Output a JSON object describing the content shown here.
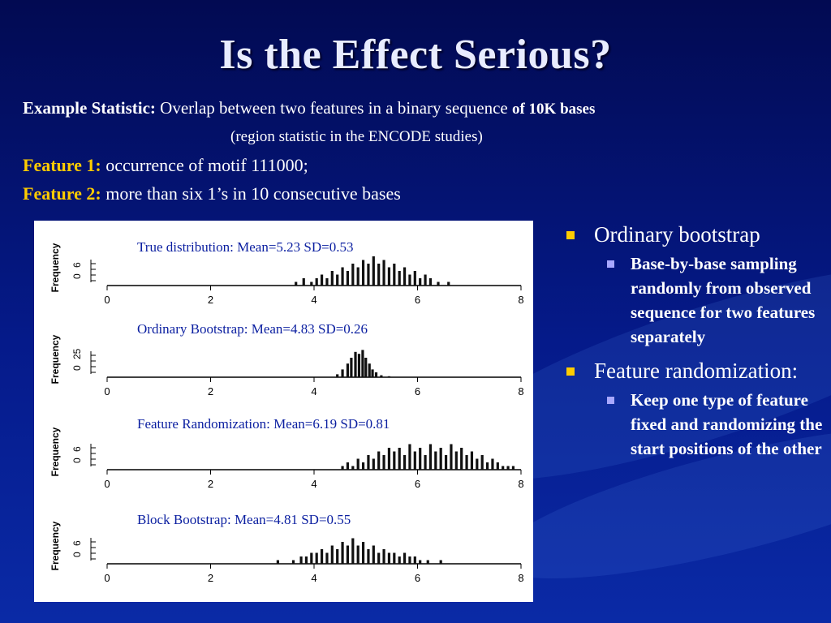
{
  "slide": {
    "title": "Is the Effect Serious?",
    "stat_label": "Example Statistic:",
    "stat_text": "Overlap between two features in a binary sequence",
    "stat_text_bold": "of 10K bases",
    "region_note": "(region statistic in the ENCODE studies)",
    "feature1_label": "Feature 1:",
    "feature1_text": "occurrence of motif 111000;",
    "feature2_label": "Feature 2:",
    "feature2_text": "more than six 1’s in 10 consecutive bases"
  },
  "bullets": {
    "b1": "Ordinary bootstrap",
    "b1_sub": "Base-by-base sampling randomly from observed sequence for two features separately",
    "b2": "Feature randomization:",
    "b2_sub": "Keep one type of feature fixed and randomizing the start positions of the other"
  },
  "colors": {
    "accent": "#ffcc00",
    "panel_title": "#0a1ea0",
    "sub_bullet": "#a8a8ff"
  },
  "chart_data": [
    {
      "type": "bar",
      "title": "True distribution: Mean=5.23  SD=0.53",
      "ylabel": "Frequency",
      "x_ticks": [
        "0",
        "2",
        "4",
        "6",
        "8"
      ],
      "y_ticks": [
        "0",
        "6"
      ],
      "xlim": [
        0,
        8
      ],
      "ylim": [
        0,
        8
      ],
      "values": [
        [
          3.65,
          1
        ],
        [
          3.8,
          2
        ],
        [
          3.95,
          1
        ],
        [
          4.05,
          2
        ],
        [
          4.15,
          3
        ],
        [
          4.25,
          2
        ],
        [
          4.35,
          4
        ],
        [
          4.45,
          3
        ],
        [
          4.55,
          5
        ],
        [
          4.65,
          4
        ],
        [
          4.75,
          6
        ],
        [
          4.85,
          5
        ],
        [
          4.95,
          7
        ],
        [
          5.05,
          6
        ],
        [
          5.15,
          8
        ],
        [
          5.25,
          6
        ],
        [
          5.35,
          7
        ],
        [
          5.45,
          5
        ],
        [
          5.55,
          6
        ],
        [
          5.65,
          4
        ],
        [
          5.75,
          5
        ],
        [
          5.85,
          3
        ],
        [
          5.95,
          4
        ],
        [
          6.05,
          2
        ],
        [
          6.15,
          3
        ],
        [
          6.25,
          2
        ],
        [
          6.4,
          1
        ],
        [
          6.6,
          1
        ]
      ]
    },
    {
      "type": "bar",
      "title": "Ordinary Bootstrap: Mean=4.83  SD=0.26",
      "ylabel": "Frequency",
      "x_ticks": [
        "0",
        "2",
        "4",
        "6",
        "8"
      ],
      "y_ticks": [
        "0",
        "25"
      ],
      "xlim": [
        0,
        8
      ],
      "ylim": [
        0,
        30
      ],
      "values": [
        [
          4.45,
          3
        ],
        [
          4.55,
          8
        ],
        [
          4.65,
          14
        ],
        [
          4.72,
          20
        ],
        [
          4.8,
          26
        ],
        [
          4.87,
          24
        ],
        [
          4.94,
          28
        ],
        [
          5.0,
          20
        ],
        [
          5.07,
          14
        ],
        [
          5.13,
          8
        ],
        [
          5.2,
          5
        ],
        [
          5.3,
          2
        ],
        [
          5.45,
          1
        ]
      ]
    },
    {
      "type": "bar",
      "title": "Feature Randomization: Mean=6.19  SD=0.81",
      "ylabel": "Frequency",
      "x_ticks": [
        "0",
        "2",
        "4",
        "6",
        "8"
      ],
      "y_ticks": [
        "0",
        "6"
      ],
      "xlim": [
        0,
        8
      ],
      "ylim": [
        0,
        8
      ],
      "values": [
        [
          4.55,
          1
        ],
        [
          4.65,
          2
        ],
        [
          4.75,
          1
        ],
        [
          4.85,
          3
        ],
        [
          4.95,
          2
        ],
        [
          5.05,
          4
        ],
        [
          5.15,
          3
        ],
        [
          5.25,
          5
        ],
        [
          5.35,
          4
        ],
        [
          5.45,
          6
        ],
        [
          5.55,
          5
        ],
        [
          5.65,
          6
        ],
        [
          5.75,
          4
        ],
        [
          5.85,
          7
        ],
        [
          5.95,
          5
        ],
        [
          6.05,
          6
        ],
        [
          6.15,
          4
        ],
        [
          6.25,
          7
        ],
        [
          6.35,
          5
        ],
        [
          6.45,
          6
        ],
        [
          6.55,
          4
        ],
        [
          6.65,
          7
        ],
        [
          6.75,
          5
        ],
        [
          6.85,
          6
        ],
        [
          6.95,
          4
        ],
        [
          7.05,
          5
        ],
        [
          7.15,
          3
        ],
        [
          7.25,
          4
        ],
        [
          7.35,
          2
        ],
        [
          7.45,
          3
        ],
        [
          7.55,
          2
        ],
        [
          7.65,
          1
        ],
        [
          7.75,
          1
        ],
        [
          7.85,
          1
        ]
      ]
    },
    {
      "type": "bar",
      "title": "Block Bootstrap: Mean=4.81  SD=0.55",
      "ylabel": "Frequency",
      "x_ticks": [
        "0",
        "2",
        "4",
        "6",
        "8"
      ],
      "y_ticks": [
        "0",
        "6"
      ],
      "xlim": [
        0,
        8
      ],
      "ylim": [
        0,
        8
      ],
      "values": [
        [
          3.3,
          1
        ],
        [
          3.6,
          1
        ],
        [
          3.75,
          2
        ],
        [
          3.85,
          2
        ],
        [
          3.95,
          3
        ],
        [
          4.05,
          3
        ],
        [
          4.15,
          4
        ],
        [
          4.25,
          3
        ],
        [
          4.35,
          5
        ],
        [
          4.45,
          4
        ],
        [
          4.55,
          6
        ],
        [
          4.65,
          5
        ],
        [
          4.75,
          7
        ],
        [
          4.85,
          5
        ],
        [
          4.95,
          6
        ],
        [
          5.05,
          4
        ],
        [
          5.15,
          5
        ],
        [
          5.25,
          3
        ],
        [
          5.35,
          4
        ],
        [
          5.45,
          3
        ],
        [
          5.55,
          3
        ],
        [
          5.65,
          2
        ],
        [
          5.75,
          3
        ],
        [
          5.85,
          2
        ],
        [
          5.95,
          2
        ],
        [
          6.05,
          1
        ],
        [
          6.2,
          1
        ],
        [
          6.45,
          1
        ]
      ]
    }
  ]
}
